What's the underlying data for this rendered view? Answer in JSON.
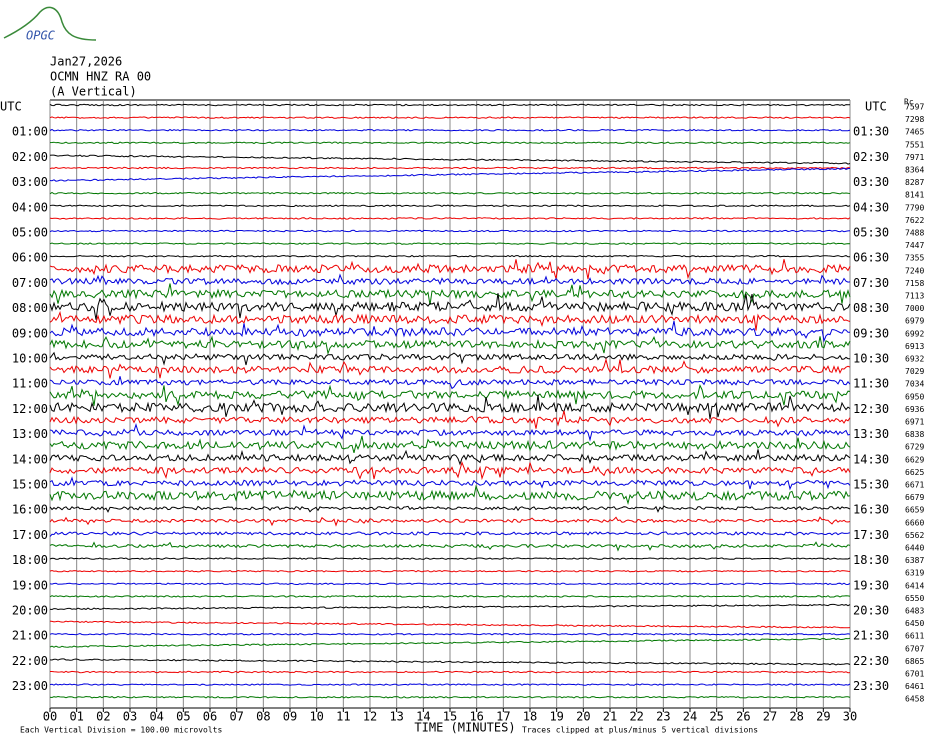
{
  "logo_text": "OPGC",
  "header": [
    "Jan27,2026",
    "OCMN HNZ RA 00",
    "(A Vertical)"
  ],
  "utc_label": "UTC",
  "left_labels": [
    "01:00",
    "02:00",
    "03:00",
    "04:00",
    "05:00",
    "06:00",
    "07:00",
    "08:00",
    "09:00",
    "10:00",
    "11:00",
    "12:00",
    "13:00",
    "14:00",
    "15:00",
    "16:00",
    "17:00",
    "18:00",
    "19:00",
    "20:00",
    "21:00",
    "22:00",
    "23:00"
  ],
  "right_labels": [
    "01:30",
    "02:30",
    "03:30",
    "04:30",
    "05:30",
    "06:30",
    "07:30",
    "08:30",
    "09:30",
    "10:30",
    "11:30",
    "12:30",
    "13:30",
    "14:30",
    "15:30",
    "16:30",
    "17:30",
    "18:30",
    "19:30",
    "20:30",
    "21:30",
    "22:30",
    "23:30"
  ],
  "rms_header": "Rc",
  "rms_values": [
    7597,
    7298,
    7465,
    7551,
    7971,
    8364,
    8287,
    8141,
    7790,
    7622,
    7488,
    7447,
    7355,
    7240,
    7158,
    7113,
    7000,
    6979,
    6992,
    6913,
    6932,
    7029,
    7034,
    6950,
    6936,
    6971,
    6838,
    6729,
    6629,
    6625,
    6671,
    6679,
    6659,
    6660,
    6562,
    6440,
    6387,
    6319,
    6414,
    6550,
    6483,
    6450,
    6611,
    6707,
    6865,
    6701,
    6461,
    6458
  ],
  "x_ticks": [
    "00",
    "01",
    "02",
    "03",
    "04",
    "05",
    "06",
    "07",
    "08",
    "09",
    "10",
    "11",
    "12",
    "13",
    "14",
    "15",
    "16",
    "17",
    "18",
    "19",
    "20",
    "21",
    "22",
    "23",
    "24",
    "25",
    "26",
    "27",
    "28",
    "29",
    "30"
  ],
  "x_label": "TIME (MINUTES)",
  "footer_left": "Each Vertical Division =  100.00 microvolts",
  "footer_right": "Traces clipped at plus/minus 5 vertical divisions"
}
